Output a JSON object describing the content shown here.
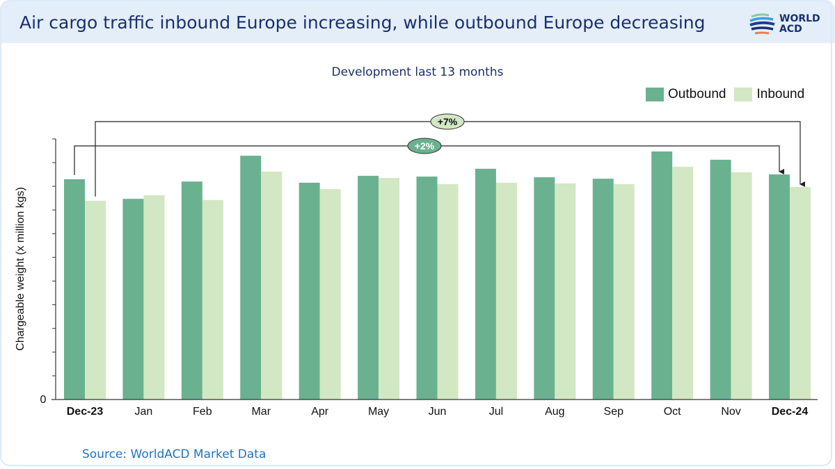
{
  "header": {
    "title": "Air cargo traffic inbound Europe increasing, while outbound Europe decreasing",
    "logo_text": "WORLD ACD"
  },
  "footer": {
    "source": "Source: WorldACD Market Data"
  },
  "colors": {
    "outbound": "#6ab190",
    "inbound": "#d2e7c3",
    "title": "#1b2f6e",
    "source": "#1f74c4",
    "header_bg": "#e3eef9"
  },
  "chart_data": {
    "type": "bar",
    "title": "Development last 13 months",
    "ylabel": "Chargeable weight (x million kgs)",
    "xlabel": "",
    "y_tick_labels": [
      "0"
    ],
    "ylim": [
      0,
      11
    ],
    "y_units_note": "relative tick units (axis unlabelled except 0)",
    "grid": false,
    "legend": "top-right",
    "categories": [
      "Dec-23",
      "Jan",
      "Feb",
      "Mar",
      "Apr",
      "May",
      "Jun",
      "Jul",
      "Aug",
      "Sep",
      "Oct",
      "Nov",
      "Dec-24"
    ],
    "bold_categories": [
      "Dec-23",
      "Dec-24"
    ],
    "series": [
      {
        "name": "Outbound",
        "values": [
          9.3,
          8.47,
          9.2,
          10.29,
          9.15,
          9.44,
          9.41,
          9.74,
          9.38,
          9.32,
          10.47,
          10.12,
          9.5
        ]
      },
      {
        "name": "Inbound",
        "values": [
          8.39,
          8.62,
          8.42,
          9.62,
          8.88,
          9.35,
          9.09,
          9.15,
          9.12,
          9.09,
          9.82,
          9.59,
          8.97
        ]
      }
    ],
    "annotations": [
      {
        "label": "+7%",
        "series": "Inbound",
        "from": "Dec-23",
        "to": "Dec-24"
      },
      {
        "label": "+2%",
        "series": "Outbound",
        "from": "Dec-23",
        "to": "Dec-24"
      }
    ]
  }
}
